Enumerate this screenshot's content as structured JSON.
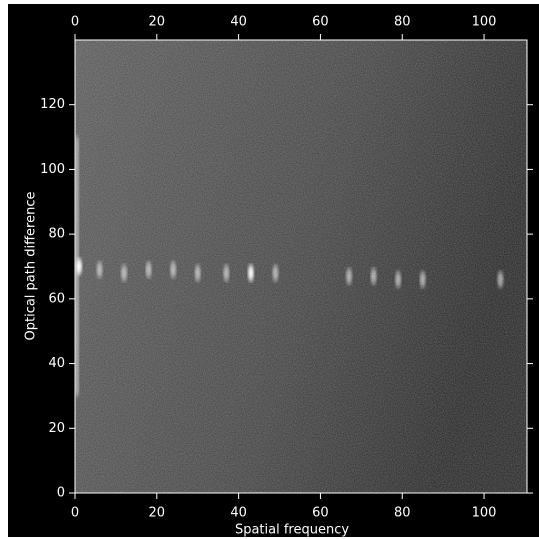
{
  "chart_data": {
    "type": "image",
    "x_label": "Spatial frequency",
    "y_label": "Optical path difference",
    "xlim": [
      0,
      110.5
    ],
    "ylim": [
      0,
      140
    ],
    "xticks": [
      0,
      20,
      40,
      60,
      80,
      100
    ],
    "yticks": [
      0,
      20,
      40,
      60,
      80,
      100,
      120
    ],
    "peaks": {
      "x": [
        1,
        6,
        12,
        18,
        24,
        30,
        37,
        43,
        49,
        67,
        73,
        79,
        85,
        104
      ],
      "y": [
        70,
        69,
        68,
        69,
        69,
        68,
        68,
        68,
        68,
        67,
        67,
        66,
        66,
        66
      ]
    }
  }
}
